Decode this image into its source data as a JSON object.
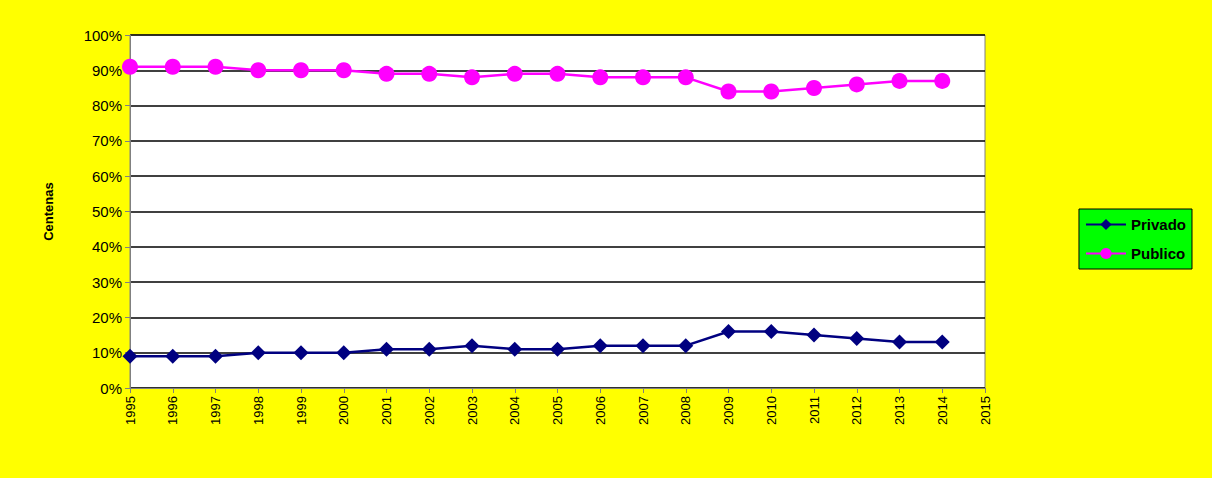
{
  "chart_data": {
    "type": "line",
    "y_label": "Centenas",
    "categories": [
      "1995",
      "1996",
      "1997",
      "1998",
      "1999",
      "2000",
      "2001",
      "2002",
      "2003",
      "2004",
      "2005",
      "2006",
      "2007",
      "2008",
      "2009",
      "2010",
      "2011",
      "2012",
      "2013",
      "2014",
      "2015"
    ],
    "series": [
      {
        "name": "Privado",
        "color": "#000080",
        "marker": "diamond",
        "values": [
          9,
          9,
          9,
          10,
          10,
          10,
          11,
          11,
          12,
          11,
          11,
          12,
          12,
          12,
          16,
          16,
          15,
          14,
          13,
          13,
          null
        ]
      },
      {
        "name": "Publico",
        "color": "#ff00ff",
        "marker": "circle",
        "values": [
          91,
          91,
          91,
          90,
          90,
          90,
          89,
          89,
          88,
          89,
          89,
          88,
          88,
          88,
          84,
          84,
          85,
          86,
          87,
          87,
          null
        ]
      }
    ],
    "ylim": [
      0,
      100
    ],
    "yticks": [
      {
        "value": 0,
        "label": "0%"
      },
      {
        "value": 10,
        "label": "10%"
      },
      {
        "value": 20,
        "label": "20%"
      },
      {
        "value": 30,
        "label": "30%"
      },
      {
        "value": 40,
        "label": "40%"
      },
      {
        "value": 50,
        "label": "50%"
      },
      {
        "value": 60,
        "label": "60%"
      },
      {
        "value": 70,
        "label": "70%"
      },
      {
        "value": 80,
        "label": "80%"
      },
      {
        "value": 90,
        "label": "90%"
      },
      {
        "value": 100,
        "label": "100%"
      }
    ],
    "grid": true,
    "legend": "right"
  }
}
